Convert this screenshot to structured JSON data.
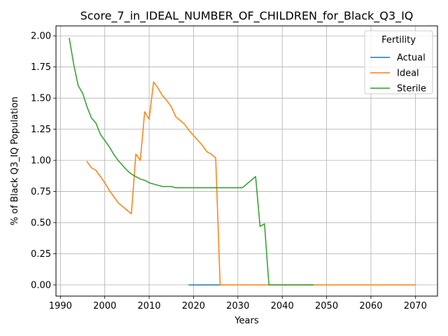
{
  "chart_data": {
    "type": "line",
    "title": "Score_7_in_IDEAL_NUMBER_OF_CHILDREN_for_Black_Q3_IQ",
    "xlabel": "Years",
    "ylabel": "% of Black Q3_IQ Population",
    "xlim": [
      1989,
      2075
    ],
    "ylim": [
      -0.09,
      2.08
    ],
    "xticks": [
      1990,
      2000,
      2010,
      2020,
      2030,
      2040,
      2050,
      2060,
      2070
    ],
    "yticks": [
      0.0,
      0.25,
      0.5,
      0.75,
      1.0,
      1.25,
      1.5,
      1.75,
      2.0
    ],
    "ytick_labels": [
      "0.00",
      "0.25",
      "0.50",
      "0.75",
      "1.00",
      "1.25",
      "1.50",
      "1.75",
      "2.00"
    ],
    "grid": true,
    "legend": {
      "title": "Fertility",
      "placement": "top-right"
    },
    "series": [
      {
        "name": "Actual",
        "color": "#1f77b4",
        "x": [
          2019,
          2020,
          2021,
          2022,
          2023,
          2024,
          2025,
          2026
        ],
        "y": [
          0,
          0,
          0,
          0,
          0,
          0,
          0,
          0
        ]
      },
      {
        "name": "Ideal",
        "color": "#ff7f0e",
        "x": [
          1996,
          1997,
          1998,
          1999,
          2000,
          2001,
          2002,
          2003,
          2004,
          2005,
          2006,
          2007,
          2008,
          2009,
          2010,
          2011,
          2012,
          2013,
          2014,
          2015,
          2016,
          2017,
          2018,
          2019,
          2020,
          2021,
          2022,
          2023,
          2024,
          2025,
          2026,
          2030,
          2040,
          2050,
          2060,
          2070
        ],
        "y": [
          0.99,
          0.94,
          0.92,
          0.87,
          0.82,
          0.76,
          0.71,
          0.66,
          0.63,
          0.6,
          0.57,
          1.05,
          1.0,
          1.39,
          1.33,
          1.63,
          1.58,
          1.52,
          1.48,
          1.43,
          1.35,
          1.32,
          1.29,
          1.24,
          1.2,
          1.16,
          1.12,
          1.07,
          1.05,
          1.02,
          0.0,
          0.0,
          0.0,
          0.0,
          0.0,
          0.0
        ]
      },
      {
        "name": "Sterile",
        "color": "#2ca02c",
        "x": [
          1992,
          1993,
          1994,
          1995,
          1996,
          1997,
          1998,
          1999,
          2000,
          2001,
          2002,
          2003,
          2004,
          2005,
          2006,
          2007,
          2008,
          2009,
          2010,
          2011,
          2012,
          2013,
          2014,
          2015,
          2016,
          2017,
          2018,
          2019,
          2020,
          2025,
          2030,
          2031,
          2032,
          2033,
          2034,
          2035,
          2036,
          2037,
          2040,
          2047
        ],
        "y": [
          1.98,
          1.77,
          1.6,
          1.54,
          1.43,
          1.34,
          1.3,
          1.21,
          1.16,
          1.11,
          1.05,
          1.0,
          0.96,
          0.92,
          0.89,
          0.87,
          0.85,
          0.84,
          0.82,
          0.81,
          0.8,
          0.79,
          0.79,
          0.79,
          0.78,
          0.78,
          0.78,
          0.78,
          0.78,
          0.78,
          0.78,
          0.78,
          0.81,
          0.84,
          0.87,
          0.47,
          0.49,
          0.0,
          0.0,
          0.0
        ]
      }
    ]
  }
}
